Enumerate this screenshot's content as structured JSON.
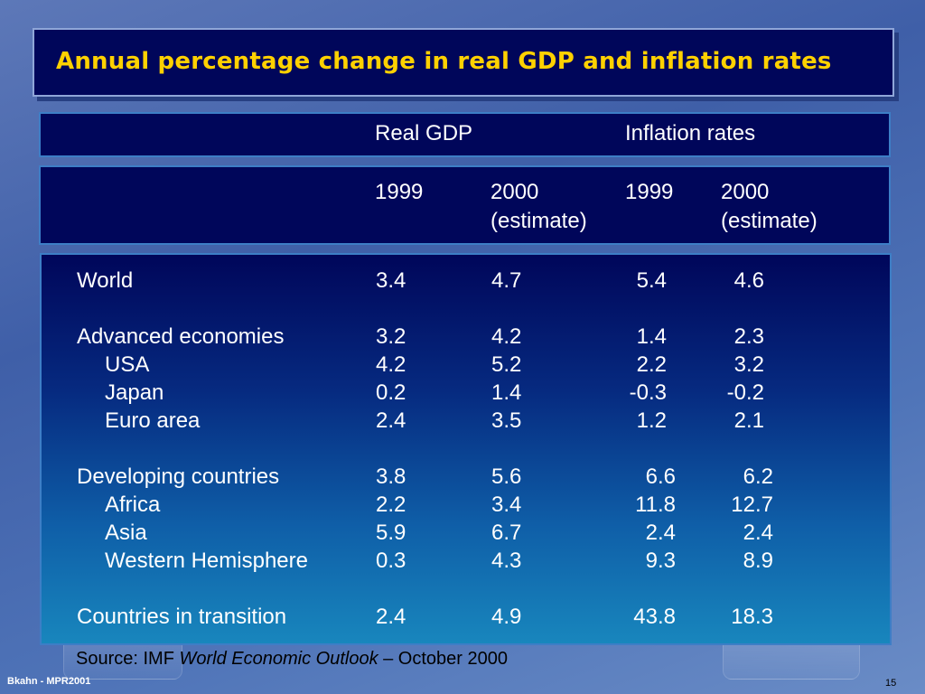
{
  "title": "Annual percentage change in real GDP and inflation rates",
  "header": {
    "real_gdp": "Real GDP",
    "inflation_rates": "Inflation rates",
    "gdp_1999": "1999",
    "gdp_2000": "2000",
    "gdp_2000_note": "(estimate)",
    "inf_1999": "1999",
    "inf_2000": "2000",
    "inf_2000_note": "(estimate)"
  },
  "rows": [
    {
      "label": "World",
      "gdp_1999": "3.4",
      "gdp_2000": "4.7",
      "inf_1999": "5.4",
      "inf_2000": "4.6"
    },
    {
      "label": "Advanced economies",
      "gdp_1999": "3.2",
      "gdp_2000": "4.2",
      "inf_1999": "1.4",
      "inf_2000": "2.3"
    },
    {
      "label": "USA",
      "gdp_1999": "4.2",
      "gdp_2000": "5.2",
      "inf_1999": "2.2",
      "inf_2000": "3.2"
    },
    {
      "label": "Japan",
      "gdp_1999": "0.2",
      "gdp_2000": "1.4",
      "inf_1999": "-0.3",
      "inf_2000": "-0.2"
    },
    {
      "label": "Euro area",
      "gdp_1999": "2.4",
      "gdp_2000": "3.5",
      "inf_1999": "1.2",
      "inf_2000": "2.1"
    },
    {
      "label": "Developing countries",
      "gdp_1999": "3.8",
      "gdp_2000": "5.6",
      "inf_1999": "6.6",
      "inf_2000": "6.2"
    },
    {
      "label": "Africa",
      "gdp_1999": "2.2",
      "gdp_2000": "3.4",
      "inf_1999": "11.8",
      "inf_2000": "12.7"
    },
    {
      "label": "Asia",
      "gdp_1999": "5.9",
      "gdp_2000": "6.7",
      "inf_1999": "2.4",
      "inf_2000": "2.4"
    },
    {
      "label": "Western Hemisphere",
      "gdp_1999": "0.3",
      "gdp_2000": "4.3",
      "inf_1999": "9.3",
      "inf_2000": "8.9"
    },
    {
      "label": "Countries in transition",
      "gdp_1999": "2.4",
      "gdp_2000": "4.9",
      "inf_1999": "43.8",
      "inf_2000": "18.3"
    }
  ],
  "source": {
    "prefix": "Source: IMF ",
    "publication": "World Economic Outlook",
    "suffix": " – October 2000"
  },
  "footer": {
    "author": "Bkahn - MPR2001",
    "page_number": "15"
  },
  "colors": {
    "title": "#ffd100",
    "panel": "#00065a",
    "text": "#ffffff"
  }
}
